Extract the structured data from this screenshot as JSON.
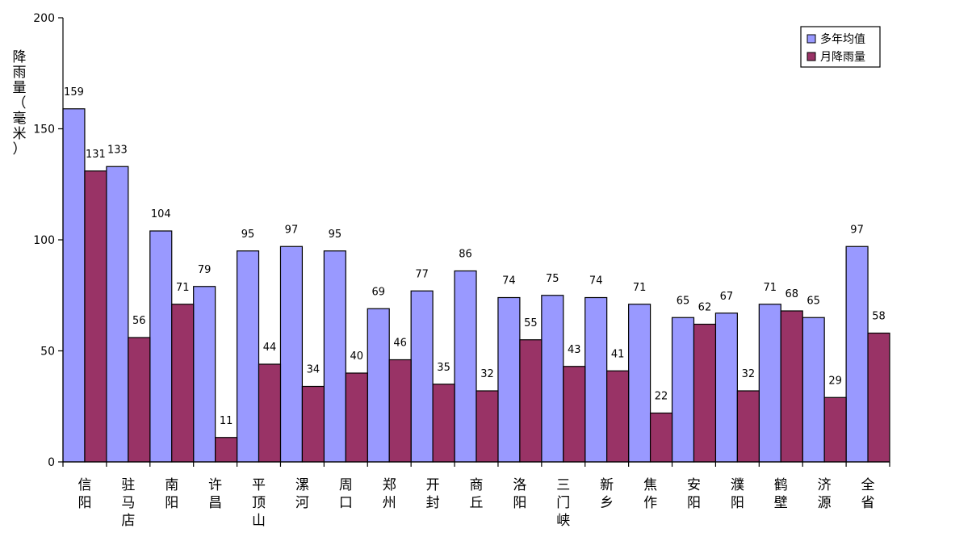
{
  "chart_data": {
    "type": "bar",
    "title": "",
    "xlabel": "",
    "ylabel": "降雨量（毫米）",
    "ylim": [
      0,
      200
    ],
    "yticks": [
      0,
      50,
      100,
      150,
      200
    ],
    "grid": false,
    "legend_position": "top-right",
    "categories": [
      "信阳",
      "驻马店",
      "南阳",
      "许昌",
      "平顶山",
      "漯河",
      "周口",
      "郑州",
      "开封",
      "商丘",
      "洛阳",
      "三门峡",
      "新乡",
      "焦作",
      "安阳",
      "濮阳",
      "鹤壁",
      "济源",
      "全省"
    ],
    "series": [
      {
        "name": "多年均值",
        "color": "#9999ff",
        "values": [
          159,
          133,
          104,
          79,
          95,
          97,
          95,
          69,
          77,
          86,
          74,
          75,
          74,
          71,
          65,
          67,
          71,
          65,
          97
        ]
      },
      {
        "name": "月降雨量",
        "color": "#993366",
        "values": [
          131,
          56,
          71,
          11,
          44,
          34,
          40,
          46,
          35,
          32,
          55,
          43,
          41,
          22,
          62,
          32,
          68,
          29,
          58
        ]
      }
    ]
  }
}
